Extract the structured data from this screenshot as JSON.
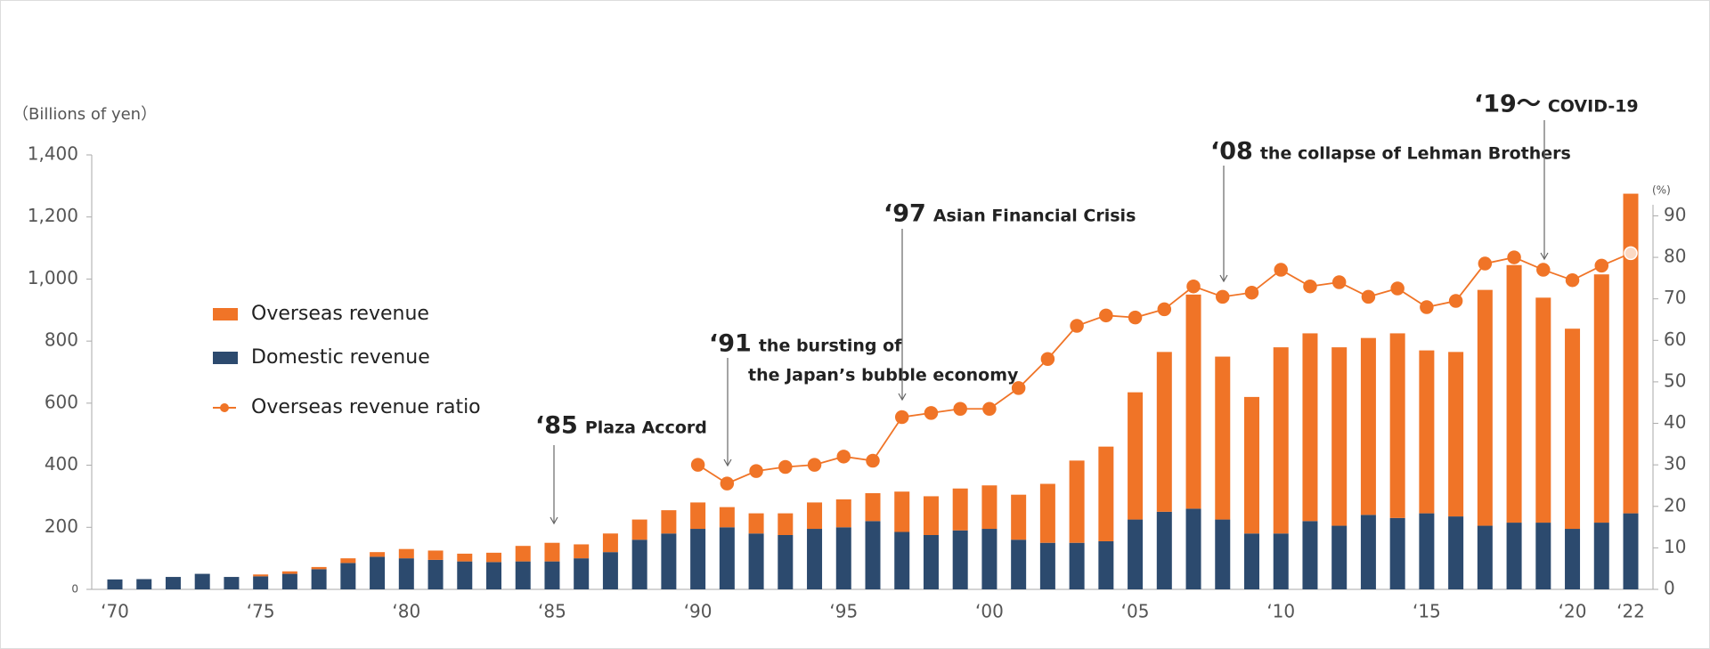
{
  "chart_data": {
    "type": "bar",
    "stacked": true,
    "y_axis_label": "（Billions of yen）",
    "y2_axis_label": "(%)",
    "categories": [
      "‘70",
      null,
      null,
      null,
      null,
      "‘75",
      null,
      null,
      null,
      null,
      "‘80",
      null,
      null,
      null,
      null,
      "‘85",
      null,
      null,
      null,
      null,
      "‘90",
      null,
      null,
      null,
      null,
      "‘95",
      null,
      null,
      null,
      null,
      "‘00",
      null,
      null,
      null,
      null,
      "‘05",
      null,
      null,
      null,
      null,
      "‘10",
      null,
      null,
      null,
      null,
      "‘15",
      null,
      null,
      null,
      null,
      "‘20",
      null,
      "‘22"
    ],
    "series": [
      {
        "name": "Domestic revenue",
        "color": "#2c4a6e",
        "values": [
          32,
          33,
          40,
          50,
          40,
          42,
          50,
          65,
          85,
          105,
          100,
          95,
          90,
          88,
          90,
          90,
          100,
          120,
          160,
          180,
          195,
          200,
          180,
          175,
          195,
          200,
          220,
          185,
          175,
          190,
          195,
          160,
          150,
          150,
          155,
          225,
          250,
          260,
          225,
          180,
          180,
          220,
          205,
          240,
          230,
          245,
          235,
          205,
          215,
          215,
          195,
          215,
          245
        ]
      },
      {
        "name": "Overseas revenue",
        "color": "#f07427",
        "values": [
          0,
          0,
          0,
          0,
          0,
          6,
          8,
          7,
          15,
          15,
          30,
          30,
          25,
          30,
          50,
          60,
          45,
          60,
          65,
          75,
          85,
          65,
          65,
          70,
          85,
          90,
          90,
          130,
          125,
          135,
          140,
          145,
          190,
          265,
          305,
          410,
          515,
          690,
          525,
          440,
          600,
          605,
          575,
          570,
          595,
          525,
          530,
          760,
          830,
          725,
          645,
          800,
          1030
        ]
      },
      {
        "name": "Overseas revenue ratio",
        "color": "#f07427",
        "type": "line",
        "axis": "y2",
        "values": [
          null,
          null,
          null,
          null,
          null,
          null,
          null,
          null,
          null,
          null,
          null,
          null,
          null,
          null,
          null,
          null,
          null,
          null,
          null,
          null,
          30,
          25.5,
          28.5,
          29.5,
          30,
          32,
          31,
          41.5,
          42.5,
          43.5,
          43.5,
          48.5,
          55.5,
          63.5,
          66,
          65.5,
          67.5,
          73,
          70.5,
          71.5,
          77,
          73,
          74,
          70.5,
          72.5,
          68,
          69.5,
          78.5,
          80,
          77,
          74.5,
          78,
          81
        ]
      }
    ],
    "ylim": [
      0,
      1400
    ],
    "yticks": [
      0,
      200,
      400,
      600,
      800,
      {
        "value": 1000,
        "label": "1,000"
      },
      {
        "value": 1200,
        "label": "1,200"
      },
      {
        "value": 1400,
        "label": "1,400"
      }
    ],
    "y2lim": [
      0,
      90
    ],
    "y2ticks": [
      0,
      10,
      20,
      30,
      40,
      50,
      60,
      70,
      80,
      90
    ],
    "annotations": [
      {
        "year": "‘85",
        "text": [
          "Plaza Accord"
        ]
      },
      {
        "year": "‘91",
        "text": [
          "the bursting of",
          "the Japan’s bubble economy"
        ]
      },
      {
        "year": "‘97",
        "text": [
          "Asian Financial Crisis"
        ]
      },
      {
        "year": "‘08",
        "text": [
          "the collapse of Lehman Brothers"
        ]
      },
      {
        "year": "‘19～",
        "text": [
          "COVID-19"
        ]
      }
    ]
  }
}
